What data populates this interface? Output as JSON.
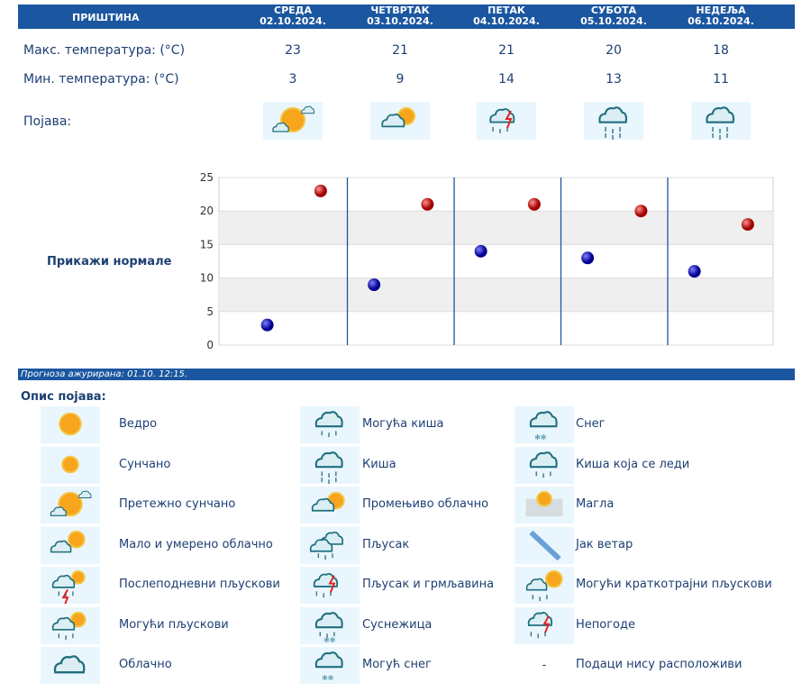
{
  "header": {
    "city": "ПРИШТИНА",
    "days": [
      {
        "name": "СРЕДА",
        "date": "02.10.2024."
      },
      {
        "name": "ЧЕТВРТАК",
        "date": "03.10.2024."
      },
      {
        "name": "ПЕТАК",
        "date": "04.10.2024."
      },
      {
        "name": "СУБОТА",
        "date": "05.10.2024."
      },
      {
        "name": "НЕДЕЉА",
        "date": "06.10.2024."
      }
    ]
  },
  "rows": {
    "max_label": "Макс. температура: (°C)",
    "min_label": "Мин. температура: (°C)",
    "phenomenon_label": "Појава:",
    "max": [
      "23",
      "21",
      "21",
      "20",
      "18"
    ],
    "min": [
      "3",
      "9",
      "14",
      "13",
      "11"
    ],
    "icons": [
      "mostly-sunny-icon",
      "variable-cloudy-icon",
      "shower-thunder-icon",
      "rain-icon",
      "rain-icon"
    ]
  },
  "show_normals": "Прикажи нормале",
  "chart_data": {
    "type": "scatter",
    "yticks": [
      "0",
      "5",
      "10",
      "15",
      "20",
      "25"
    ],
    "ylim": [
      0,
      25
    ],
    "grid": true,
    "series": [
      {
        "values": [
          23,
          21,
          21,
          20,
          18
        ],
        "color": "#cc0000"
      },
      {
        "values": [
          3,
          9,
          14,
          13,
          11
        ],
        "color": "#1010b0"
      }
    ]
  },
  "footer": {
    "updated": "Прогноза ажурирана:  01.10. 12:15."
  },
  "legend": {
    "title": "Опис појава:",
    "items": [
      {
        "icon": "clear-icon",
        "label": "Ведро"
      },
      {
        "icon": "possible-rain-icon",
        "label": "Могућа киша"
      },
      {
        "icon": "snow-icon",
        "label": "Снег"
      },
      {
        "icon": "sunny-icon",
        "label": "Сунчано"
      },
      {
        "icon": "rain-icon",
        "label": "Киша"
      },
      {
        "icon": "freezing-rain-icon",
        "label": "Киша која се леди"
      },
      {
        "icon": "mostly-sunny-icon",
        "label": "Претежно сунчано"
      },
      {
        "icon": "variable-cloudy-icon",
        "label": "Промењиво облачно"
      },
      {
        "icon": "fog-icon",
        "label": "Магла"
      },
      {
        "icon": "partly-cloudy-icon",
        "label": "Мало и умерено облачно"
      },
      {
        "icon": "shower-icon",
        "label": "Пљусак"
      },
      {
        "icon": "strong-wind-icon",
        "label": "Јак ветар"
      },
      {
        "icon": "afternoon-showers-icon",
        "label": "Послеподневни пљускови"
      },
      {
        "icon": "shower-thunder-icon",
        "label": "Пљусак и грмљавина"
      },
      {
        "icon": "possible-short-showers-icon",
        "label": "Могући краткотрајни пљускови"
      },
      {
        "icon": "possible-showers-icon",
        "label": "Могући пљускови"
      },
      {
        "icon": "sleet-icon",
        "label": "Суснежица"
      },
      {
        "icon": "storm-icon",
        "label": "Непогоде"
      },
      {
        "icon": "cloudy-icon",
        "label": "Облачно"
      },
      {
        "icon": "possible-snow-icon",
        "label": "Могућ снег"
      },
      {
        "icon": "none",
        "symbol": "-",
        "label": "Подаци нису расположиви"
      }
    ]
  }
}
